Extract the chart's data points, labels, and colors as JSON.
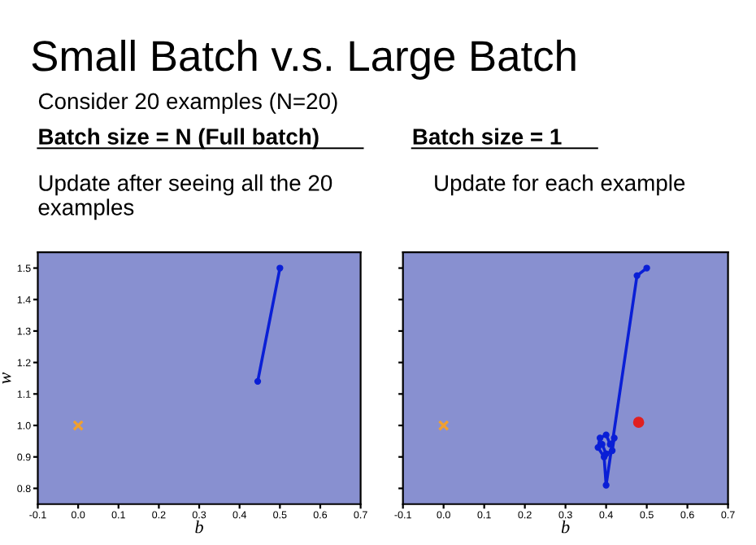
{
  "chart_data": [
    {
      "type": "line",
      "title": "Batch size = N (Full batch)",
      "subtitle": "Update after seeing all the 20 examples",
      "annotations": [
        "Small Batch v.s. Large Batch",
        "Consider 20 examples (N=20)"
      ],
      "xlabel": "b",
      "ylabel": "w",
      "xlim": [
        -0.1,
        0.7
      ],
      "ylim": [
        0.75,
        1.55
      ],
      "xticks": [
        -0.1,
        {
          "value": 0,
          "label": "0.0"
        },
        0.1,
        0.2,
        0.3,
        0.4,
        0.5,
        0.6,
        0.7
      ],
      "yticks": [
        0.8,
        0.9,
        {
          "value": 1,
          "label": "1.0"
        },
        1.1,
        1.2,
        1.3,
        1.4,
        1.5
      ],
      "grid": false,
      "legend": false,
      "series": [
        {
          "color": "#0a1fd6",
          "marker": "circle",
          "x": [
            0.5,
            0.445
          ],
          "values": [
            1.5,
            1.14
          ]
        },
        {
          "type": "scatter",
          "color": "#f0a030",
          "marker": "cross",
          "x": [
            0.0
          ],
          "values": [
            1.0
          ]
        }
      ]
    },
    {
      "type": "line",
      "title": "Batch size = 1",
      "subtitle": "Update for each example",
      "xlabel": "b",
      "xlim": [
        -0.1,
        0.7
      ],
      "ylim": [
        0.75,
        1.55
      ],
      "xticks": [
        -0.1,
        {
          "value": 0,
          "label": "0.0"
        },
        0.1,
        0.2,
        0.3,
        0.4,
        0.5,
        0.6,
        0.7
      ],
      "yticks": [
        0.8,
        0.9,
        1.0,
        1.1,
        1.2,
        1.3,
        1.4,
        1.5
      ],
      "tick_labels": "x",
      "grid": false,
      "legend": false,
      "series": [
        {
          "color": "#0a1fd6",
          "marker": "circle",
          "x": [
            0.5,
            0.476,
            0.4,
            0.395,
            0.38,
            0.385,
            0.4,
            0.41,
            0.42,
            0.415,
            0.4,
            0.39
          ],
          "values": [
            1.5,
            1.476,
            0.81,
            0.9,
            0.93,
            0.96,
            0.97,
            0.94,
            0.96,
            0.92,
            0.91,
            0.94
          ]
        },
        {
          "type": "scatter",
          "color": "#f0a030",
          "marker": "cross",
          "x": [
            0.0
          ],
          "values": [
            1.0
          ]
        },
        {
          "type": "scatter",
          "color": "#e02020",
          "marker": "circle",
          "x": [
            0.48
          ],
          "values": [
            1.01
          ]
        }
      ]
    }
  ]
}
